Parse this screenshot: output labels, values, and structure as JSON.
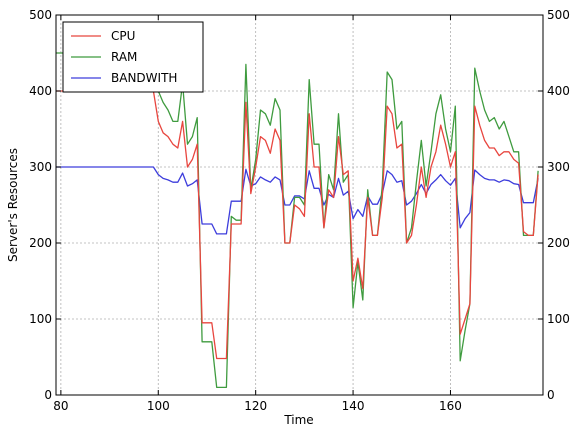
{
  "chart_data": {
    "type": "line",
    "xlabel": "Time",
    "ylabel": "Server's Resources",
    "xlim": [
      79,
      179
    ],
    "ylim": [
      0,
      500
    ],
    "xticks": [
      80,
      100,
      120,
      140,
      160
    ],
    "yticks": [
      0,
      100,
      200,
      300,
      400,
      500
    ],
    "grid": true,
    "legend_position": "top-left",
    "series": [
      {
        "name": "CPU",
        "color": "#e8463f",
        "x": [
          79,
          99,
          100,
          101,
          102,
          103,
          104,
          105,
          106,
          107,
          108,
          109,
          110,
          111,
          112,
          113,
          114,
          115,
          116,
          117,
          118,
          119,
          120,
          121,
          122,
          123,
          124,
          125,
          126,
          127,
          128,
          129,
          130,
          131,
          132,
          133,
          134,
          135,
          136,
          137,
          138,
          139,
          140,
          141,
          142,
          143,
          144,
          145,
          146,
          147,
          148,
          149,
          150,
          151,
          152,
          153,
          154,
          155,
          156,
          157,
          158,
          159,
          160,
          161,
          162,
          163,
          164,
          165,
          166,
          167,
          168,
          169,
          170,
          171,
          172,
          173,
          174,
          175,
          176,
          177,
          178
        ],
        "y": [
          400,
          400,
          360,
          345,
          340,
          330,
          325,
          360,
          300,
          310,
          330,
          95,
          95,
          95,
          48,
          48,
          48,
          225,
          225,
          225,
          385,
          265,
          300,
          340,
          335,
          318,
          350,
          335,
          200,
          200,
          250,
          245,
          235,
          370,
          300,
          300,
          220,
          270,
          260,
          340,
          290,
          295,
          150,
          180,
          140,
          260,
          210,
          210,
          260,
          380,
          370,
          325,
          330,
          200,
          210,
          250,
          300,
          260,
          300,
          320,
          355,
          330,
          300,
          320,
          80,
          100,
          120,
          380,
          355,
          335,
          325,
          325,
          315,
          320,
          320,
          310,
          305,
          215,
          210,
          210,
          290
        ]
      },
      {
        "name": "RAM",
        "color": "#3f9b3f",
        "x": [
          79,
          99,
          100,
          101,
          102,
          103,
          104,
          105,
          106,
          107,
          108,
          109,
          110,
          111,
          112,
          113,
          114,
          115,
          116,
          117,
          118,
          119,
          120,
          121,
          122,
          123,
          124,
          125,
          126,
          127,
          128,
          129,
          130,
          131,
          132,
          133,
          134,
          135,
          136,
          137,
          138,
          139,
          140,
          141,
          142,
          143,
          144,
          145,
          146,
          147,
          148,
          149,
          150,
          151,
          152,
          153,
          154,
          155,
          156,
          157,
          158,
          159,
          160,
          161,
          162,
          163,
          164,
          165,
          166,
          167,
          168,
          169,
          170,
          171,
          172,
          173,
          174,
          175,
          176,
          177,
          178
        ],
        "y": [
          450,
          450,
          400,
          385,
          375,
          360,
          360,
          410,
          330,
          340,
          365,
          70,
          70,
          70,
          10,
          10,
          10,
          235,
          230,
          230,
          435,
          270,
          310,
          375,
          370,
          355,
          390,
          375,
          200,
          200,
          260,
          260,
          250,
          415,
          330,
          330,
          220,
          290,
          270,
          370,
          280,
          290,
          115,
          175,
          125,
          270,
          210,
          210,
          275,
          425,
          415,
          350,
          360,
          200,
          220,
          280,
          335,
          275,
          320,
          370,
          395,
          350,
          320,
          380,
          45,
          85,
          120,
          430,
          400,
          375,
          360,
          365,
          350,
          360,
          340,
          320,
          320,
          210,
          210,
          210,
          295
        ]
      },
      {
        "name": "BANDWITH",
        "color": "#3d3ddc",
        "x": [
          79,
          99,
          100,
          101,
          102,
          103,
          104,
          105,
          106,
          107,
          108,
          109,
          110,
          111,
          112,
          113,
          114,
          115,
          116,
          117,
          118,
          119,
          120,
          121,
          122,
          123,
          124,
          125,
          126,
          127,
          128,
          129,
          130,
          131,
          132,
          133,
          134,
          135,
          136,
          137,
          138,
          139,
          140,
          141,
          142,
          143,
          144,
          145,
          146,
          147,
          148,
          149,
          150,
          151,
          152,
          153,
          154,
          155,
          156,
          157,
          158,
          159,
          160,
          161,
          162,
          163,
          164,
          165,
          166,
          167,
          168,
          169,
          170,
          171,
          172,
          173,
          174,
          175,
          176,
          177,
          178
        ],
        "y": [
          300,
          300,
          290,
          285,
          283,
          280,
          280,
          292,
          275,
          278,
          283,
          225,
          225,
          225,
          212,
          212,
          212,
          255,
          255,
          255,
          297,
          275,
          278,
          287,
          283,
          280,
          287,
          283,
          250,
          250,
          262,
          262,
          258,
          295,
          272,
          272,
          250,
          264,
          260,
          285,
          263,
          268,
          232,
          244,
          235,
          262,
          251,
          251,
          265,
          295,
          290,
          280,
          282,
          250,
          255,
          265,
          277,
          265,
          277,
          283,
          290,
          282,
          276,
          285,
          220,
          232,
          240,
          296,
          290,
          285,
          283,
          283,
          280,
          283,
          282,
          278,
          277,
          253,
          253,
          253,
          285
        ]
      }
    ]
  }
}
